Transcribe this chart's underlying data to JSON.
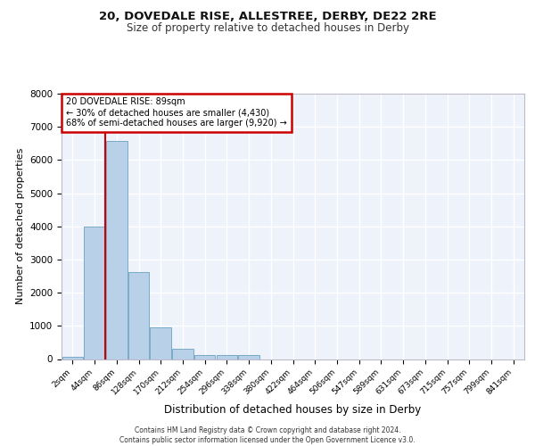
{
  "title1": "20, DOVEDALE RISE, ALLESTREE, DERBY, DE22 2RE",
  "title2": "Size of property relative to detached houses in Derby",
  "xlabel": "Distribution of detached houses by size in Derby",
  "ylabel": "Number of detached properties",
  "bin_labels": [
    "2sqm",
    "44sqm",
    "86sqm",
    "128sqm",
    "170sqm",
    "212sqm",
    "254sqm",
    "296sqm",
    "338sqm",
    "380sqm",
    "422sqm",
    "464sqm",
    "506sqm",
    "547sqm",
    "589sqm",
    "631sqm",
    "673sqm",
    "715sqm",
    "757sqm",
    "799sqm",
    "841sqm"
  ],
  "bar_values": [
    80,
    3980,
    6580,
    2620,
    960,
    310,
    130,
    120,
    110,
    0,
    0,
    0,
    0,
    0,
    0,
    0,
    0,
    0,
    0,
    0,
    0
  ],
  "bar_color": "#b8d0e8",
  "bar_edge_color": "#7aaac8",
  "vline_color": "#cc0000",
  "vline_x_index": 2,
  "annotation_text": "20 DOVEDALE RISE: 89sqm\n← 30% of detached houses are smaller (4,430)\n68% of semi-detached houses are larger (9,920) →",
  "annotation_box_color": "#ffffff",
  "annotation_box_edge_color": "#cc0000",
  "background_color": "#eef2fa",
  "grid_color": "#ffffff",
  "footer": "Contains HM Land Registry data © Crown copyright and database right 2024.\nContains public sector information licensed under the Open Government Licence v3.0.",
  "ylim": [
    0,
    8000
  ],
  "yticks": [
    0,
    1000,
    2000,
    3000,
    4000,
    5000,
    6000,
    7000,
    8000
  ]
}
